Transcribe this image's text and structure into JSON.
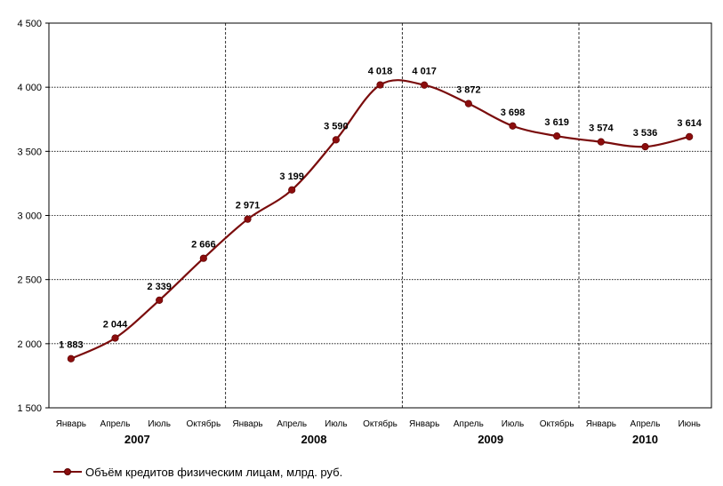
{
  "chart_data": {
    "type": "line",
    "categories": [
      "Январь",
      "Апрель",
      "Июль",
      "Октябрь",
      "Январь",
      "Апрель",
      "Июль",
      "Октябрь",
      "Январь",
      "Апрель",
      "Июль",
      "Октябрь",
      "Январь",
      "Апрель",
      "Июнь"
    ],
    "years": [
      {
        "label": "2007",
        "start": 0,
        "end": 3
      },
      {
        "label": "2008",
        "start": 4,
        "end": 7
      },
      {
        "label": "2009",
        "start": 8,
        "end": 11
      },
      {
        "label": "2010",
        "start": 12,
        "end": 14
      }
    ],
    "series": [
      {
        "name": "Объём кредитов физическим лицам, млрд. руб.",
        "values": [
          1883,
          2044,
          2339,
          2666,
          2971,
          3199,
          3590,
          4018,
          4017,
          3872,
          3698,
          3619,
          3574,
          3536,
          3614
        ],
        "labels": [
          "1 883",
          "2 044",
          "2 339",
          "2 666",
          "2 971",
          "3 199",
          "3 590",
          "4 018",
          "4 017",
          "3 872",
          "3 698",
          "3 619",
          "3 574",
          "3 536",
          "3 614"
        ],
        "color": "#7a0c0c",
        "marker_color": "#8b0d0d"
      }
    ],
    "ylim": [
      1500,
      4500
    ],
    "yticks": [
      1500,
      2000,
      2500,
      3000,
      3500,
      4000,
      4500
    ],
    "ytick_labels": [
      "1 500",
      "2 000",
      "2 500",
      "3 000",
      "3 500",
      "4 000",
      "4 500"
    ],
    "title": "",
    "xlabel": "",
    "ylabel": "",
    "grid": "horizontal dotted; vertical dashed year separators",
    "legend": "bottom-left"
  }
}
